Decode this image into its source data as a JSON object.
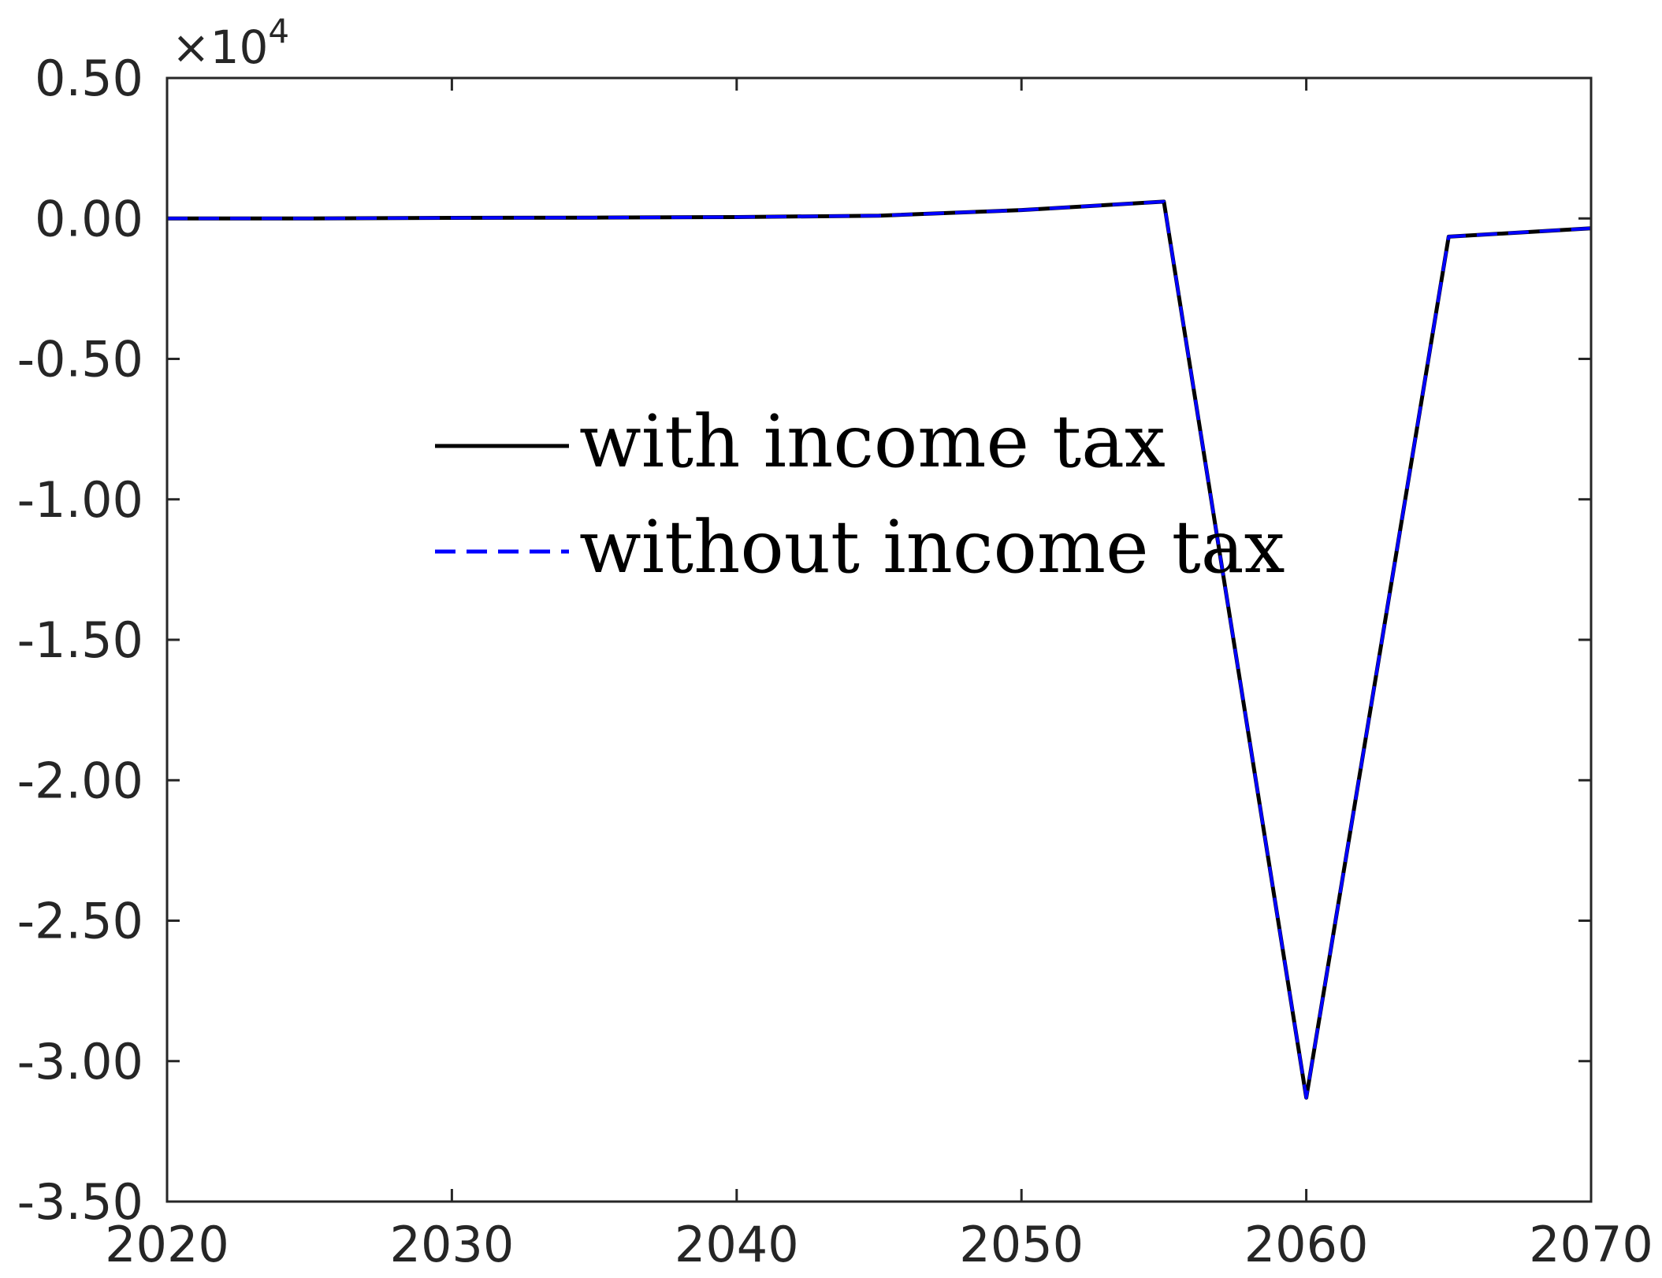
{
  "chart_data": {
    "type": "line",
    "title": "",
    "xlabel": "",
    "ylabel": "",
    "xlim": [
      2020,
      2070
    ],
    "ylim": [
      -3.5,
      0.5
    ],
    "y_exponent_label": "×10⁴",
    "y_exponent": {
      "base": "×10",
      "power": "4"
    },
    "grid": false,
    "legend_position": "center",
    "x_ticks": [
      2020,
      2030,
      2040,
      2050,
      2060,
      2070
    ],
    "x_tick_labels": [
      "2020",
      "2030",
      "2040",
      "2050",
      "2060",
      "2070"
    ],
    "y_ticks": [
      0.5,
      0.0,
      -0.5,
      -1.0,
      -1.5,
      -2.0,
      -2.5,
      -3.0,
      -3.5
    ],
    "y_tick_labels": [
      "0.50",
      "0.00",
      "-0.50",
      "-1.00",
      "-1.50",
      "-2.00",
      "-2.50",
      "-3.00",
      "-3.50"
    ],
    "x": [
      2020,
      2025,
      2030,
      2035,
      2040,
      2045,
      2050,
      2055,
      2060,
      2065,
      2070
    ],
    "series": [
      {
        "name": "with income tax",
        "color": "#000000",
        "style": "solid",
        "values": [
          0.0,
          0.0,
          0.002,
          0.003,
          0.005,
          0.01,
          0.03,
          0.06,
          -3.13,
          -0.065,
          -0.035
        ]
      },
      {
        "name": "without income tax",
        "color": "#0000ff",
        "style": "dashed",
        "values": [
          0.0,
          0.0,
          0.002,
          0.003,
          0.005,
          0.01,
          0.03,
          0.06,
          -3.13,
          -0.065,
          -0.035
        ]
      }
    ]
  }
}
